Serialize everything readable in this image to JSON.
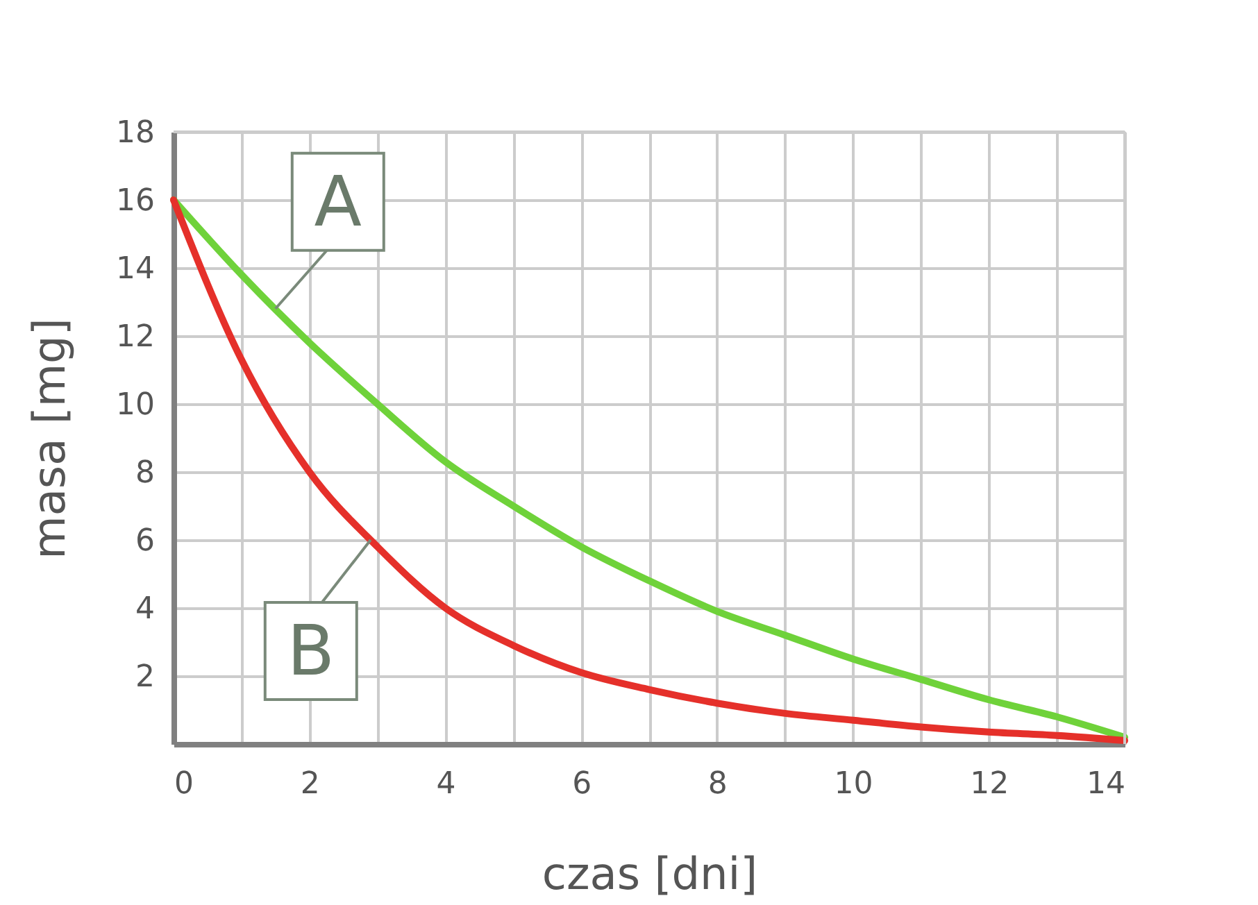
{
  "chart_data": {
    "type": "line",
    "xlabel": "czas [dni]",
    "ylabel": "masa [mg]",
    "x": [
      0,
      1,
      2,
      3,
      4,
      5,
      6,
      7,
      8,
      9,
      10,
      11,
      12,
      13,
      14
    ],
    "series": [
      {
        "color": "#6fd23a",
        "values": [
          16,
          13.8,
          11.8,
          10,
          8.3,
          7,
          5.8,
          4.8,
          3.9,
          3.2,
          2.5,
          1.9,
          1.3,
          0.8,
          0.2
        ]
      },
      {
        "color": "#e5302a",
        "values": [
          16,
          11.3,
          8,
          5.8,
          4,
          2.9,
          2.1,
          1.6,
          1.2,
          0.9,
          0.7,
          0.5,
          0.35,
          0.25,
          0.1
        ]
      }
    ],
    "annotations": [
      {
        "text": "A",
        "x": 1.5,
        "y": 12.8
      },
      {
        "text": "B",
        "x": 2.9,
        "y": 6
      }
    ],
    "xlim": [
      0,
      14
    ],
    "ylim": [
      0,
      18
    ],
    "xticks": [
      0,
      {
        "value": 1,
        "label": null
      },
      2,
      {
        "value": 3,
        "label": null
      },
      4,
      {
        "value": 5,
        "label": null
      },
      6,
      {
        "value": 7,
        "label": null
      },
      8,
      {
        "value": 9,
        "label": null
      },
      10,
      {
        "value": 11,
        "label": null
      },
      12,
      {
        "value": 13,
        "label": null
      },
      14
    ],
    "yticks": [
      2,
      4,
      6,
      8,
      10,
      12,
      14,
      16,
      18
    ],
    "grid": true,
    "legend": false,
    "marker": "none",
    "line_style": "solid"
  }
}
